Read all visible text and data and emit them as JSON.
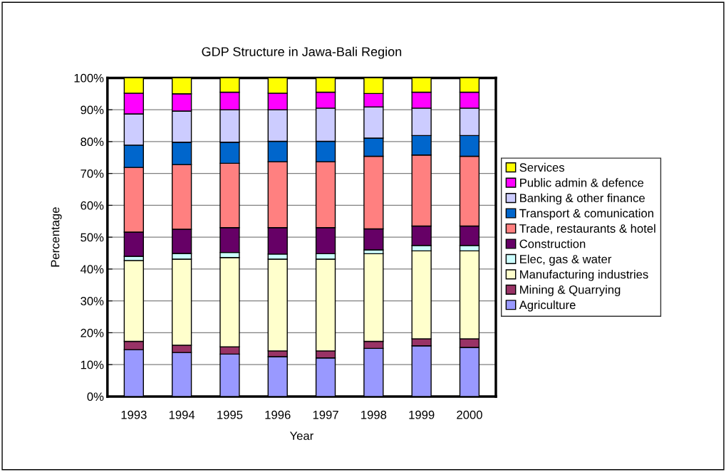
{
  "chart_data": {
    "type": "bar",
    "title": "GDP Structure in Jawa-Bali Region",
    "xlabel": "Year",
    "ylabel": "Percentage",
    "categories": [
      "1993",
      "1994",
      "1995",
      "1996",
      "1997",
      "1998",
      "1999",
      "2000"
    ],
    "stacked": true,
    "grid": "y",
    "legend": "right",
    "ylim": [
      0,
      100
    ],
    "yticks": [
      {
        "value": 0,
        "label": "0%"
      },
      {
        "value": 10,
        "label": "10%"
      },
      {
        "value": 20,
        "label": "20%"
      },
      {
        "value": 30,
        "label": "30%"
      },
      {
        "value": 40,
        "label": "40%"
      },
      {
        "value": 50,
        "label": "50%"
      },
      {
        "value": 60,
        "label": "60%"
      },
      {
        "value": 70,
        "label": "70%"
      },
      {
        "value": 80,
        "label": "80%"
      },
      {
        "value": 90,
        "label": "90%"
      },
      {
        "value": 100,
        "label": "100%"
      }
    ],
    "series": [
      {
        "name": "Agriculture",
        "color": "#9999ff",
        "values": [
          14.7,
          13.8,
          13.3,
          12.5,
          12.1,
          15.1,
          15.9,
          15.4
        ]
      },
      {
        "name": "Mining & Quarrying",
        "color": "#993366",
        "values": [
          2.6,
          2.3,
          2.3,
          1.8,
          2.2,
          2.2,
          2.2,
          2.7
        ]
      },
      {
        "name": "Manufacturing industries",
        "color": "#ffffcc",
        "values": [
          25.4,
          27.0,
          28.0,
          28.8,
          28.8,
          27.5,
          27.6,
          27.6
        ]
      },
      {
        "name": "Elec, gas & water",
        "color": "#ccffff",
        "values": [
          1.3,
          1.8,
          1.6,
          1.6,
          1.7,
          1.2,
          1.7,
          1.7
        ]
      },
      {
        "name": "Construction",
        "color": "#660066",
        "values": [
          7.6,
          7.6,
          7.8,
          8.3,
          8.2,
          6.6,
          6.1,
          6.1
        ]
      },
      {
        "name": "Trade, restaurants & hotel",
        "color": "#ff8080",
        "values": [
          20.3,
          20.3,
          20.2,
          20.7,
          20.7,
          22.8,
          22.3,
          21.9
        ]
      },
      {
        "name": "Transport & comunication",
        "color": "#0066cc",
        "values": [
          7.0,
          7.0,
          6.6,
          6.4,
          6.4,
          5.7,
          6.1,
          6.5
        ]
      },
      {
        "name": "Banking & other finance",
        "color": "#ccccff",
        "values": [
          9.8,
          9.8,
          10.2,
          9.9,
          10.4,
          9.8,
          8.6,
          8.6
        ]
      },
      {
        "name": "Public admin & defence",
        "color": "#ff00ff",
        "values": [
          6.5,
          5.4,
          5.5,
          5.2,
          5.0,
          4.2,
          5.0,
          5.0
        ]
      },
      {
        "name": "Services",
        "color": "#ffff00",
        "values": [
          4.8,
          5.0,
          4.5,
          4.8,
          4.5,
          4.9,
          4.5,
          4.5
        ]
      }
    ]
  }
}
